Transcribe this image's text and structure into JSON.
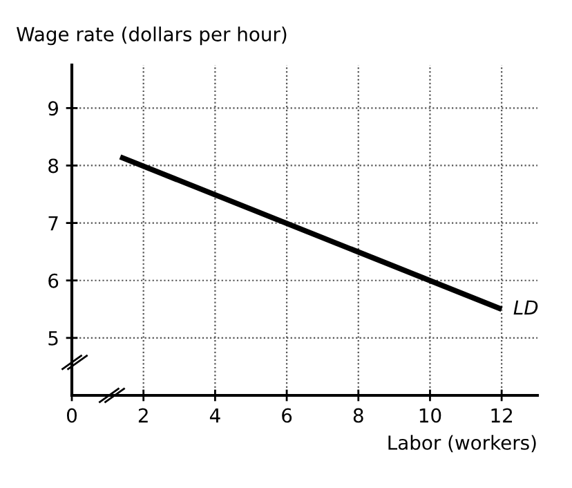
{
  "chart_data": {
    "type": "line",
    "ylabel": "Wage rate (dollars per hour)",
    "xlabel": "Labor (workers)",
    "x": [
      1.35,
      12
    ],
    "series": [
      {
        "color": "#000000",
        "values": [
          8.15,
          5.5
        ]
      }
    ],
    "annotations": [
      {
        "text": "LD",
        "x": 12,
        "y": 5.5
      }
    ],
    "xlim": [
      0,
      13
    ],
    "ylim": [
      4,
      9.75
    ],
    "xticks": [
      0,
      2,
      4,
      6,
      8,
      10,
      12
    ],
    "yticks": [
      5,
      6,
      7,
      8,
      9
    ],
    "grid": true,
    "line_style": "solid",
    "marker": "none",
    "legend": false
  }
}
